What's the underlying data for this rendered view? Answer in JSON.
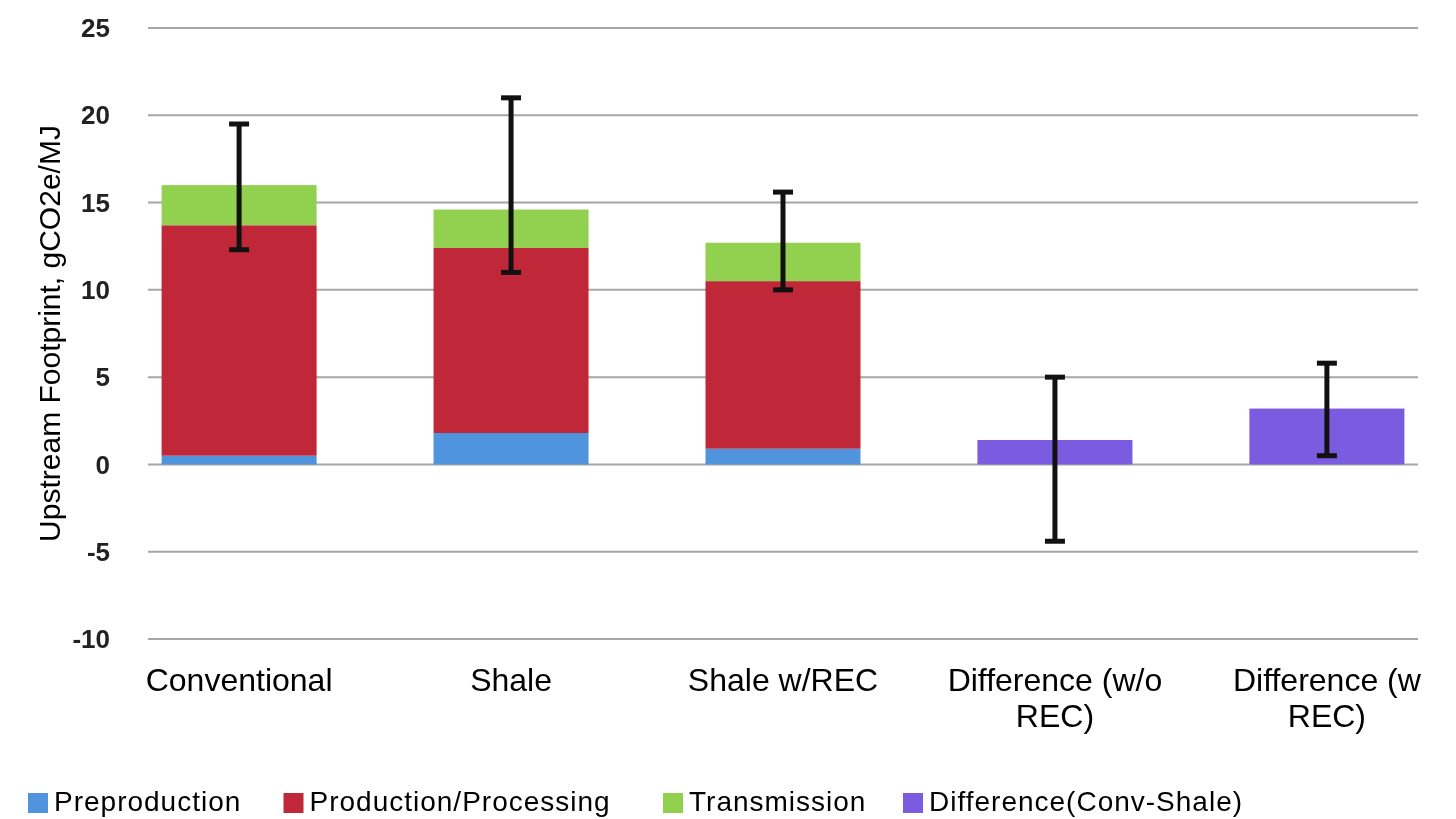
{
  "chart_data": {
    "type": "bar",
    "stacked": true,
    "ylabel": "Upstream Footprint, gCO2e/MJ",
    "categories": [
      "Conventional",
      "Shale",
      "Shale w/REC",
      "Difference (w/o REC)",
      "Difference (w REC)"
    ],
    "series": [
      {
        "name": "Preproduction",
        "color": "#4f94dc",
        "values": [
          0.5,
          1.8,
          0.9,
          null,
          null
        ]
      },
      {
        "name": "Production/Processing",
        "color": "#c0283a",
        "values": [
          13.2,
          10.6,
          9.6,
          null,
          null
        ]
      },
      {
        "name": "Transmission",
        "color": "#92d050",
        "values": [
          2.3,
          2.2,
          2.2,
          null,
          null
        ],
        "errors": [
          [
            12.3,
            19.5
          ],
          [
            11.0,
            21.0
          ],
          [
            10.0,
            15.6
          ],
          null,
          null
        ]
      },
      {
        "name": "Difference(Conv-Shale)",
        "color": "#7b5ce0",
        "values": [
          null,
          null,
          null,
          1.4,
          3.2
        ],
        "errors": [
          null,
          null,
          null,
          [
            -4.4,
            5.0
          ],
          [
            0.5,
            5.8
          ]
        ]
      }
    ],
    "ylim": [
      -10,
      25
    ],
    "yticks": [
      -10,
      -5,
      0,
      5,
      10,
      15,
      20,
      25
    ],
    "grid": "y",
    "legend": "bottom"
  }
}
